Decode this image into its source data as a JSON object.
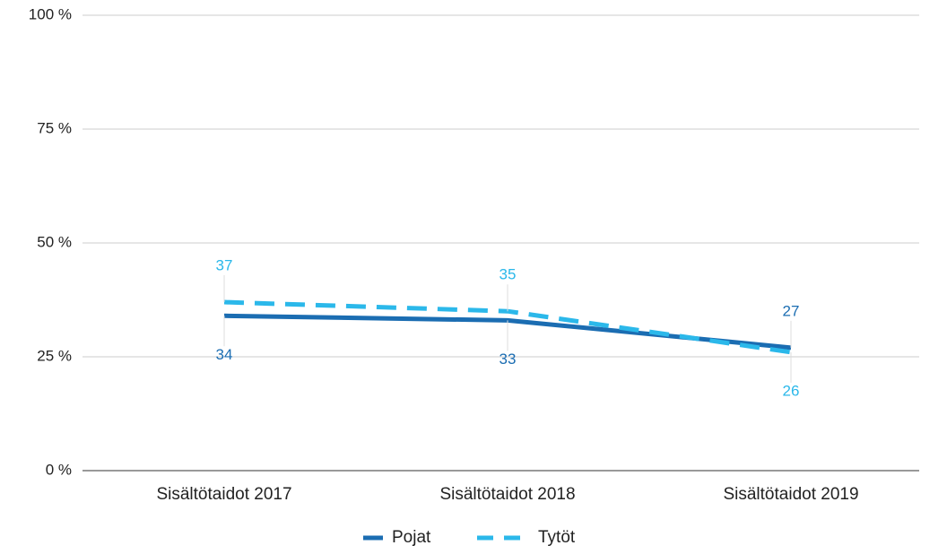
{
  "chart_data": {
    "type": "line",
    "categories": [
      "Sisältötaidot 2017",
      "Sisältötaidot 2018",
      "Sisältötaidot 2019"
    ],
    "series": [
      {
        "name": "Pojat",
        "color": "#1b6db2",
        "values": [
          34,
          33,
          27
        ]
      },
      {
        "name": "Tytöt",
        "color": "#2bb8ea",
        "values": [
          37,
          35,
          26
        ]
      }
    ],
    "ylim": [
      0,
      100
    ],
    "yticks": [
      {
        "value": 0,
        "label": "0 %"
      },
      {
        "value": 25,
        "label": "25 %"
      },
      {
        "value": 50,
        "label": "50 %"
      },
      {
        "value": 75,
        "label": "75 %"
      },
      {
        "value": 100,
        "label": "100 %"
      }
    ],
    "grid": true,
    "legend": "bottom"
  }
}
